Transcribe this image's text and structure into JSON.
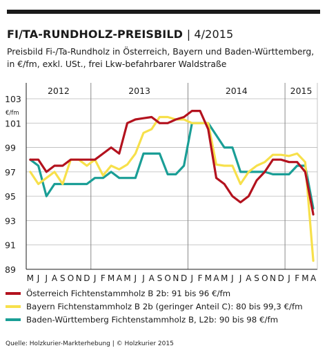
{
  "header": {
    "title": "FI/TA-RUNDHOLZ-PREISBILD",
    "issue": "| 4/2015",
    "subtitle": "Preisbild Fi-/Ta-Rundholz in Österreich, Bayern und Baden-Württemberg, in €/fm, exkl. USt., frei Lkw-befahrbarer Waldstraße"
  },
  "chart_data": {
    "type": "line",
    "unit_label": "€/fm",
    "ylim": [
      89,
      103
    ],
    "yticks": [
      89,
      91,
      93,
      95,
      97,
      99,
      101,
      103
    ],
    "years": [
      {
        "label": "2012",
        "start_index": 0
      },
      {
        "label": "2013",
        "start_index": 8
      },
      {
        "label": "2014",
        "start_index": 20
      },
      {
        "label": "2015",
        "start_index": 32
      }
    ],
    "x": [
      "M",
      "J",
      "J",
      "A",
      "S",
      "O",
      "N",
      "D",
      "J",
      "F",
      "M",
      "A",
      "M",
      "J",
      "J",
      "A",
      "S",
      "O",
      "N",
      "D",
      "J",
      "F",
      "M",
      "A",
      "M",
      "J",
      "J",
      "A",
      "S",
      "O",
      "N",
      "D",
      "J",
      "F",
      "M",
      "A"
    ],
    "grid": "horizontal",
    "series": [
      {
        "name": "Österreich Fichtenstammholz B 2b: 91 bis 96 €/fm",
        "color": "#b3121e",
        "values": [
          98,
          98,
          97,
          97.5,
          97.5,
          98,
          98,
          98,
          98,
          98.5,
          99,
          98.5,
          101,
          101.3,
          101.4,
          101.5,
          101,
          101,
          101.3,
          101.5,
          102,
          102,
          100.5,
          96.5,
          96,
          95,
          94.5,
          95,
          96.3,
          97,
          98,
          98,
          97.8,
          97.8,
          97,
          93.5
        ]
      },
      {
        "name": "Bayern Fichtenstammholz B 2b (geringer Anteil C): 80 bis 99,3 €/fm",
        "color": "#f7e04b",
        "values": [
          97,
          96,
          96.5,
          97,
          96,
          98,
          98,
          97.5,
          98,
          96.7,
          97.5,
          97.2,
          97.6,
          98.5,
          100.2,
          100.5,
          101.5,
          101.5,
          101.3,
          101.3,
          101,
          101,
          101,
          97.6,
          97.5,
          97.5,
          96,
          97,
          97.5,
          97.8,
          98.4,
          98.4,
          98.3,
          98.5,
          97.8,
          89.7
        ]
      },
      {
        "name": "Baden-Württemberg Fichtenstammholz B, L2b: 90 bis 98 €/fm",
        "color": "#1a9e96",
        "values": [
          98,
          97.5,
          95,
          96,
          96,
          96,
          96,
          96,
          96.5,
          96.5,
          97,
          96.5,
          96.5,
          96.5,
          98.5,
          98.5,
          98.5,
          96.8,
          96.8,
          97.5,
          101,
          101,
          101,
          100,
          99,
          99,
          97,
          97,
          97,
          97,
          96.8,
          96.8,
          96.8,
          97.5,
          97.5,
          94
        ]
      }
    ]
  },
  "source": "Quelle: Holzkurier-Markterhebung | © Holzkurier 2015"
}
